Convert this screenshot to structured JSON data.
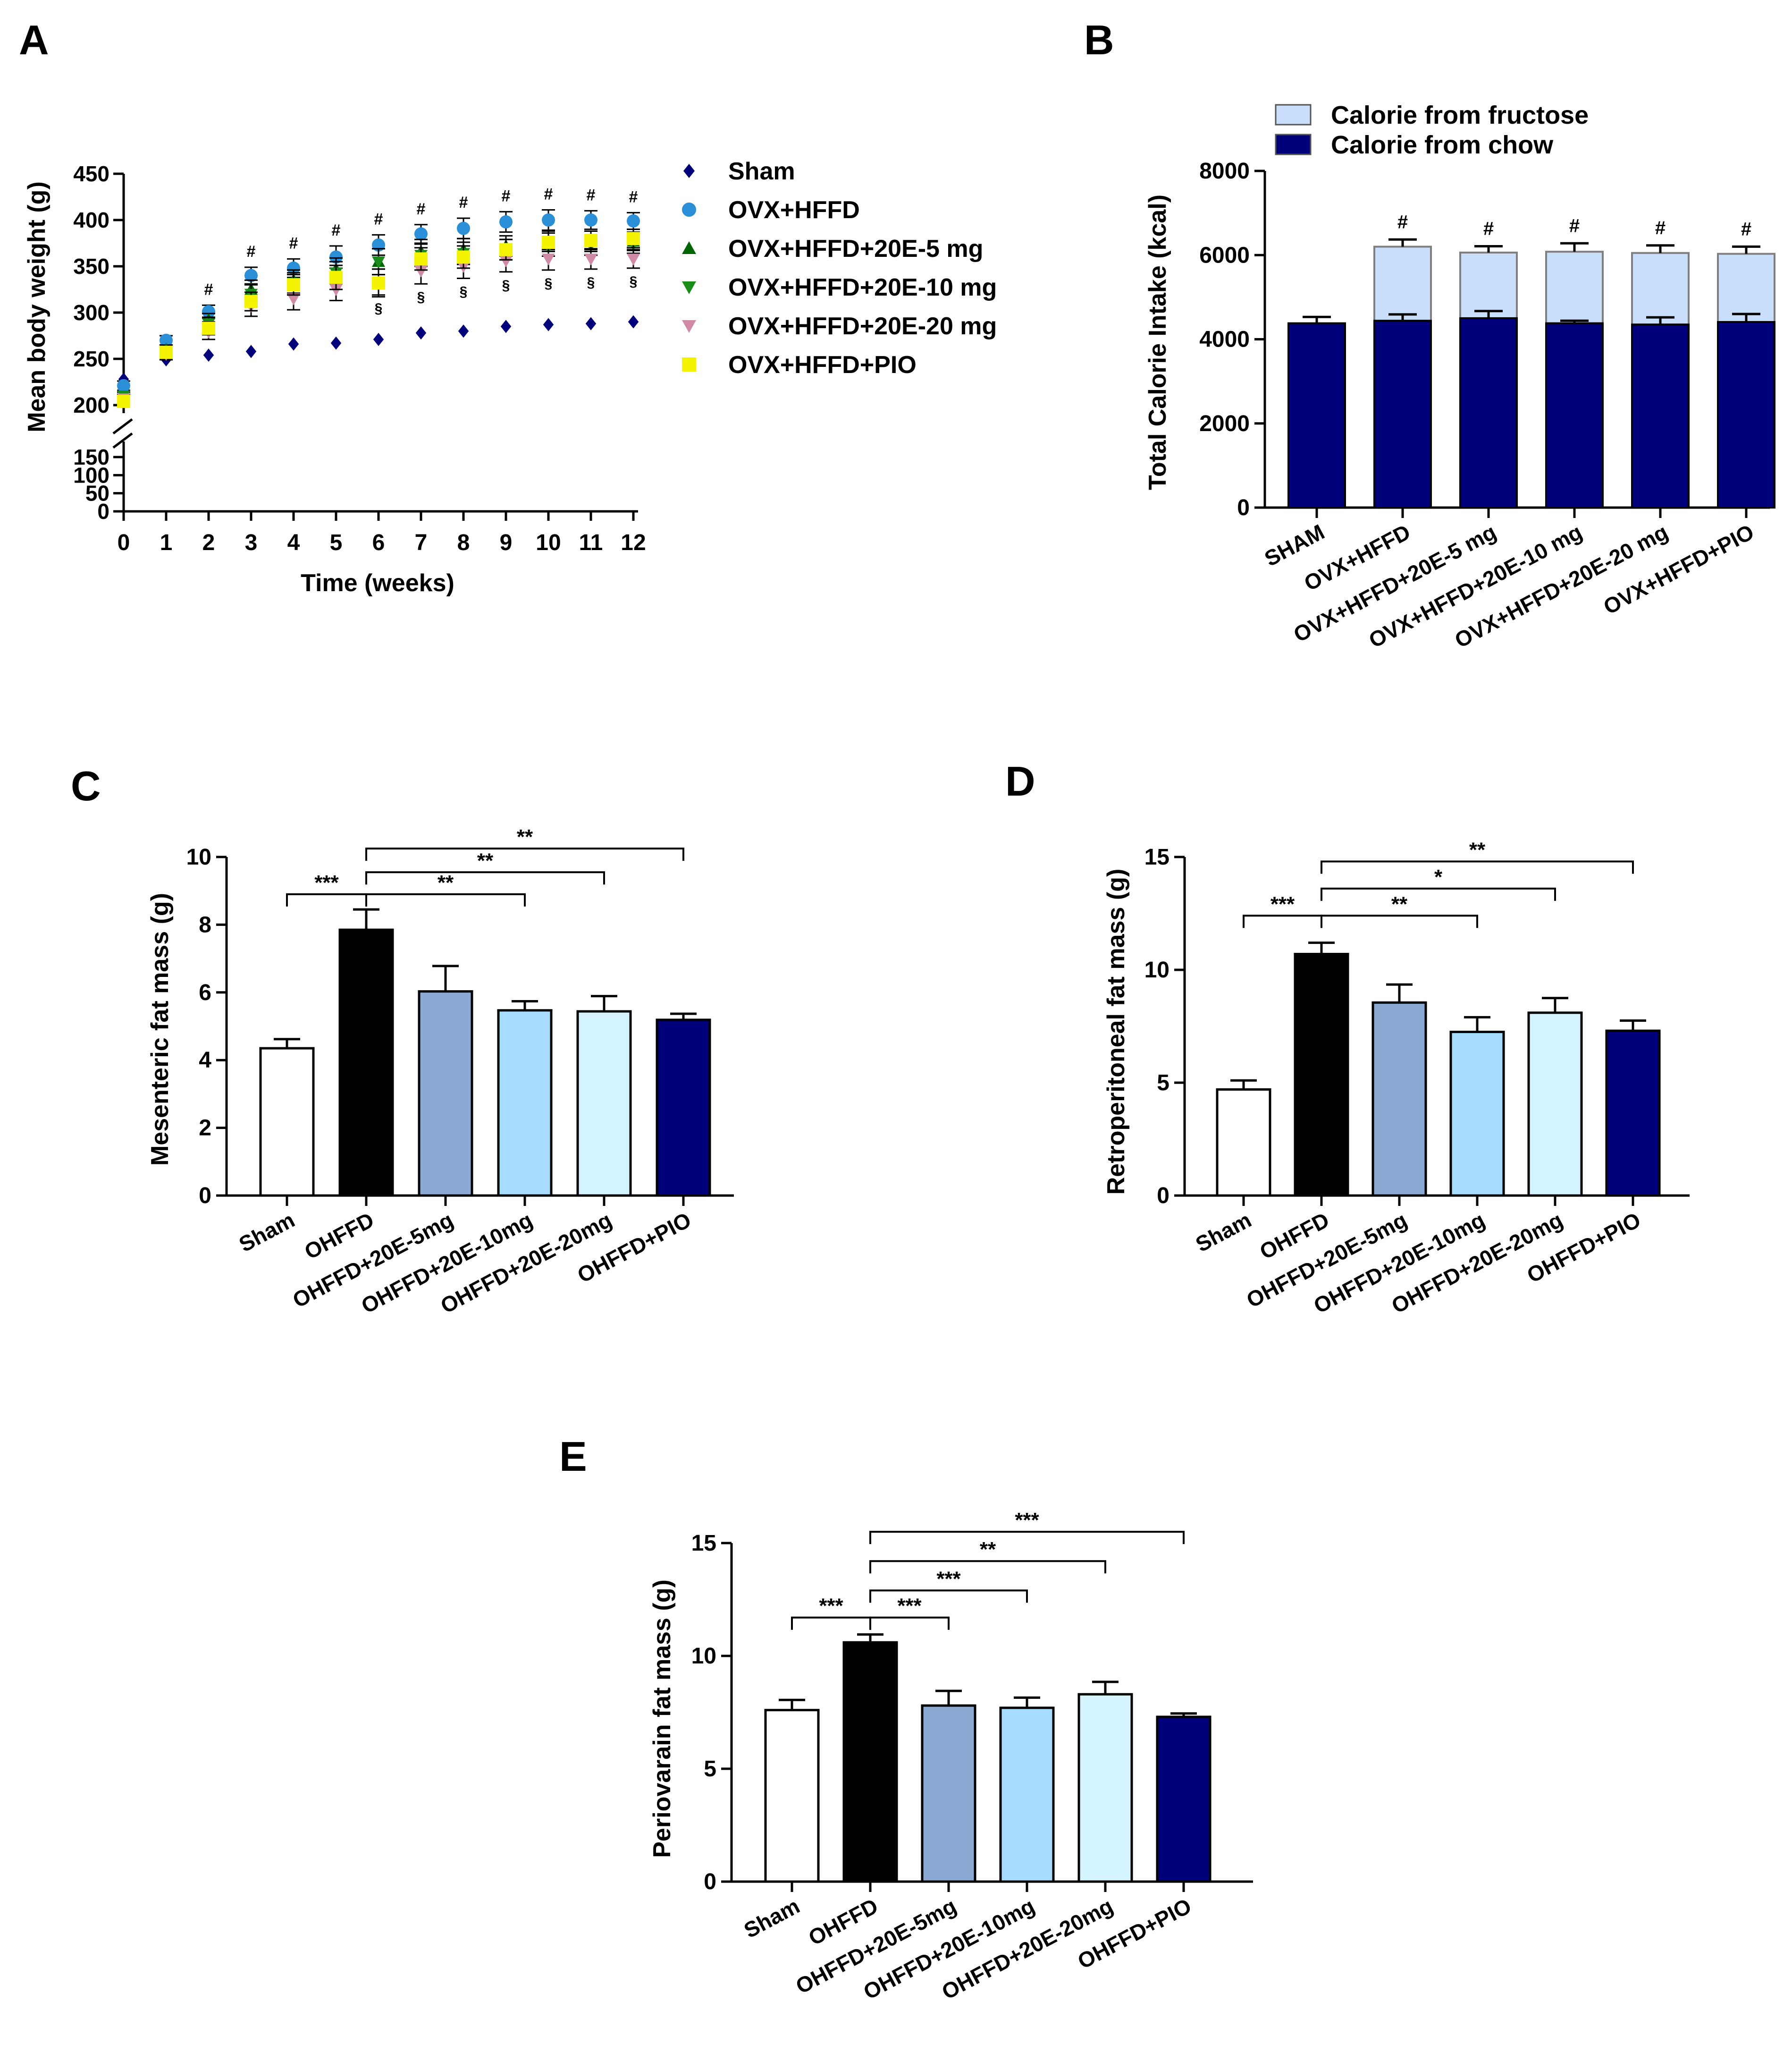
{
  "colors": {
    "sham": "#ffffff",
    "ohffd": "#000000",
    "p5": "#8aaad4",
    "p10": "#a6dcff",
    "p20": "#d4f4ff",
    "pio": "#00007a",
    "chow": "#00007a",
    "fructose": "#c9defa",
    "a_sham": "#00007a",
    "a_ovx": "#2a8fd6",
    "a_5": "#006400",
    "a_10": "#1a8c1a",
    "a_20": "#d08aa6",
    "a_pio": "#f4f400"
  },
  "chart_data": [
    {
      "id": "A",
      "panel_label": "A",
      "type": "scatter",
      "title": "",
      "xlabel": "Time (weeks)",
      "ylabel": "Mean body weight (g)",
      "x": [
        0,
        1,
        2,
        3,
        4,
        5,
        6,
        7,
        8,
        9,
        10,
        11,
        12
      ],
      "x_ticks": [
        "0",
        "1",
        "2",
        "3",
        "4",
        "5",
        "6",
        "7",
        "8",
        "9",
        "10",
        "11",
        "12"
      ],
      "y_ticks_upper": [
        "200",
        "250",
        "300",
        "350",
        "400",
        "450"
      ],
      "y_ticks_lower": [
        "0",
        "50",
        "100",
        "150"
      ],
      "axis_break": true,
      "ylim": [
        0,
        450
      ],
      "legend_position": "right",
      "series": [
        {
          "name": "Sham",
          "marker": "diamond",
          "color_key": "a_sham",
          "values": [
            228,
            249,
            254,
            258,
            266,
            267,
            271,
            278,
            280,
            285,
            287,
            288,
            290
          ],
          "errors": [
            3,
            3,
            3,
            3,
            3,
            3,
            3,
            3,
            3,
            3,
            3,
            3,
            3
          ]
        },
        {
          "name": "OVX+HFFD",
          "marker": "circle",
          "color_key": "a_ovx",
          "values": [
            221,
            270,
            301,
            340,
            348,
            360,
            373,
            385,
            391,
            398,
            400,
            400,
            399
          ],
          "errors": [
            5,
            5,
            7,
            9,
            10,
            12,
            11,
            10,
            11,
            11,
            11,
            10,
            9
          ]
        },
        {
          "name": "OVX+HFFD+20E-5 mg",
          "marker": "triangle-up",
          "color_key": "a_5",
          "values": [
            208,
            260,
            292,
            325,
            335,
            347,
            355,
            366,
            368,
            372,
            378,
            377,
            377
          ],
          "errors": [
            4,
            5,
            7,
            10,
            11,
            12,
            14,
            13,
            12,
            11,
            10,
            11,
            10
          ]
        },
        {
          "name": "OVX+HFFD+20E-10 mg",
          "marker": "triangle-down",
          "color_key": "a_10",
          "values": [
            210,
            255,
            288,
            320,
            332,
            343,
            355,
            362,
            364,
            368,
            371,
            373,
            374
          ],
          "errors": [
            4,
            5,
            7,
            10,
            11,
            12,
            14,
            12,
            12,
            11,
            10,
            11,
            10
          ]
        },
        {
          "name": "OVX+HFFD+20E-20 mg",
          "marker": "triangle-down",
          "color_key": "a_20",
          "values": [
            207,
            255,
            279,
            307,
            315,
            325,
            333,
            345,
            350,
            356,
            358,
            358,
            358
          ],
          "errors": [
            5,
            6,
            8,
            11,
            12,
            12,
            14,
            14,
            13,
            12,
            12,
            11,
            10
          ]
        },
        {
          "name": "OVX+HFFD+PIO",
          "marker": "square",
          "color_key": "a_pio",
          "values": [
            204,
            257,
            283,
            312,
            330,
            338,
            332,
            358,
            360,
            368,
            376,
            378,
            380
          ],
          "errors": [
            4,
            5,
            7,
            10,
            11,
            13,
            15,
            12,
            12,
            11,
            10,
            10,
            10
          ]
        }
      ],
      "annotations": {
        "hash_label": "#",
        "hash_weeks": [
          2,
          3,
          4,
          5,
          6,
          7,
          8,
          9,
          10,
          11,
          12
        ],
        "section_label": "§",
        "section_weeks": [
          6,
          7,
          8,
          9,
          10,
          11,
          12
        ]
      }
    },
    {
      "id": "B",
      "panel_label": "B",
      "type": "bar",
      "stacked": true,
      "title": "",
      "xlabel": "",
      "ylabel": "Total Calorie Intake (kcal)",
      "ylim": [
        0,
        8000
      ],
      "y_ticks": [
        "0",
        "2000",
        "4000",
        "6000",
        "8000"
      ],
      "y_tick_values": [
        0,
        2000,
        4000,
        6000,
        8000
      ],
      "categories": [
        "SHAM",
        "OVX+HFFD",
        "OVX+HFFD+20E-5 mg",
        "OVX+HFFD+20E-10 mg",
        "OVX+HFFD+20E-20 mg",
        "OVX+HFFD+PIO"
      ],
      "legend_position": "top-left",
      "series": [
        {
          "name": "Calorie from chow",
          "color_key": "chow",
          "values": [
            4380,
            4440,
            4500,
            4380,
            4350,
            4410
          ],
          "errors": [
            150,
            150,
            170,
            60,
            170,
            190
          ]
        },
        {
          "name": "Calorie from fructose",
          "color_key": "fructose",
          "values": [
            0,
            1760,
            1560,
            1700,
            1700,
            1620
          ],
          "errors": [
            0,
            170,
            150,
            200,
            180,
            170
          ]
        }
      ],
      "sig_label": "#",
      "sig_categories": [
        1,
        2,
        3,
        4,
        5
      ]
    },
    {
      "id": "C",
      "panel_label": "C",
      "type": "bar",
      "title": "",
      "xlabel": "",
      "ylabel": "Mesenteric fat mass (g)",
      "ylim": [
        0,
        10
      ],
      "y_ticks": [
        "0",
        "2",
        "4",
        "6",
        "8",
        "10"
      ],
      "y_tick_values": [
        0,
        2,
        4,
        6,
        8,
        10
      ],
      "categories": [
        "Sham",
        "OHFFD",
        "OHFFD+20E-5mg",
        "OHFFD+20E-10mg",
        "OHFFD+20E-20mg",
        "OHFFD+PIO"
      ],
      "values": [
        4.35,
        7.85,
        6.03,
        5.47,
        5.44,
        5.19
      ],
      "errors": [
        0.27,
        0.6,
        0.75,
        0.27,
        0.45,
        0.18
      ],
      "color_keys": [
        "sham",
        "ohffd",
        "p5",
        "p10",
        "p20",
        "pio"
      ],
      "brackets": [
        {
          "from": 0,
          "to": 1,
          "label": "***",
          "y": 8.9
        },
        {
          "from": 1,
          "to": 3,
          "label": "**",
          "y": 8.9
        },
        {
          "from": 1,
          "to": 4,
          "label": "**",
          "y": 9.55
        },
        {
          "from": 1,
          "to": 5,
          "label": "**",
          "y": 10.25
        }
      ]
    },
    {
      "id": "D",
      "panel_label": "D",
      "type": "bar",
      "title": "",
      "xlabel": "",
      "ylabel": "Retroperitoneal fat mass (g)",
      "ylim": [
        0,
        15
      ],
      "y_ticks": [
        "0",
        "5",
        "10",
        "15"
      ],
      "y_tick_values": [
        0,
        5,
        10,
        15
      ],
      "categories": [
        "Sham",
        "OHFFD",
        "OHFFD+20E-5mg",
        "OHFFD+20E-10mg",
        "OHFFD+20E-20mg",
        "OHFFD+PIO"
      ],
      "values": [
        4.7,
        10.7,
        8.55,
        7.25,
        8.1,
        7.3
      ],
      "errors": [
        0.4,
        0.5,
        0.8,
        0.65,
        0.65,
        0.45
      ],
      "color_keys": [
        "sham",
        "ohffd",
        "p5",
        "p10",
        "p20",
        "pio"
      ],
      "brackets": [
        {
          "from": 0,
          "to": 1,
          "label": "***",
          "y": 12.4
        },
        {
          "from": 1,
          "to": 3,
          "label": "**",
          "y": 12.4
        },
        {
          "from": 1,
          "to": 4,
          "label": "*",
          "y": 13.6
        },
        {
          "from": 1,
          "to": 5,
          "label": "**",
          "y": 14.8
        }
      ]
    },
    {
      "id": "E",
      "panel_label": "E",
      "type": "bar",
      "title": "",
      "xlabel": "",
      "ylabel": "Periovarain fat mass (g)",
      "ylim": [
        0,
        15
      ],
      "y_ticks": [
        "0",
        "5",
        "10",
        "15"
      ],
      "y_tick_values": [
        0,
        5,
        10,
        15
      ],
      "categories": [
        "Sham",
        "OHFFD",
        "OHFFD+20E-5mg",
        "OHFFD+20E-10mg",
        "OHFFD+20E-20mg",
        "OHFFD+PIO"
      ],
      "values": [
        7.6,
        10.6,
        7.8,
        7.7,
        8.3,
        7.3
      ],
      "errors": [
        0.45,
        0.35,
        0.65,
        0.45,
        0.55,
        0.15
      ],
      "color_keys": [
        "sham",
        "ohffd",
        "p5",
        "p10",
        "p20",
        "pio"
      ],
      "brackets": [
        {
          "from": 0,
          "to": 1,
          "label": "***",
          "y": 11.7
        },
        {
          "from": 1,
          "to": 2,
          "label": "***",
          "y": 11.7
        },
        {
          "from": 1,
          "to": 3,
          "label": "***",
          "y": 12.9
        },
        {
          "from": 1,
          "to": 4,
          "label": "**",
          "y": 14.2
        },
        {
          "from": 1,
          "to": 5,
          "label": "***",
          "y": 15.5
        }
      ]
    }
  ]
}
